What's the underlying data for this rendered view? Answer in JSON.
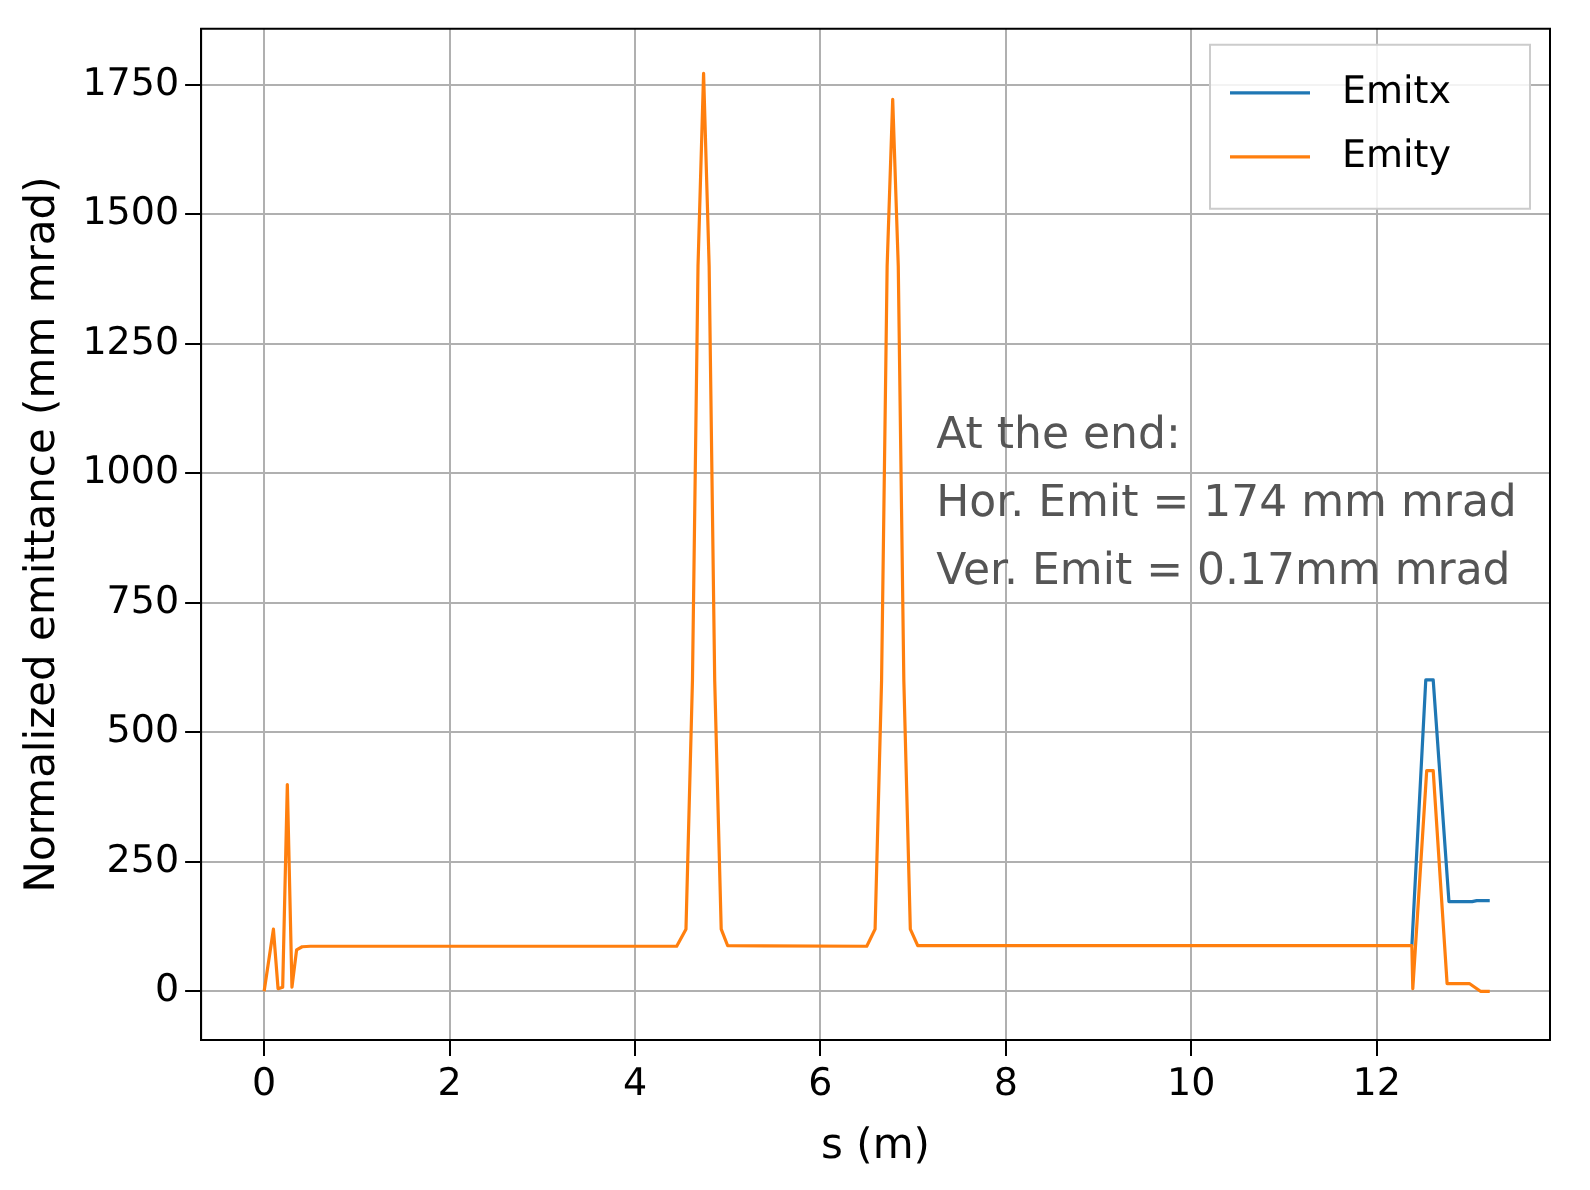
{
  "chart_data": {
    "type": "line",
    "xlabel": "s (m)",
    "ylabel": "Normalized emittance (mm mrad)",
    "annotations": [
      "At the end:",
      "Hor. Emit = 174 mm mrad",
      "Ver. Emit = 0.17mm mrad"
    ],
    "series": [
      {
        "name": "Emitx",
        "color": "#1f77b4",
        "x": [
          12.38,
          12.53,
          12.61,
          12.78,
          13.03,
          13.08,
          13.22
        ],
        "values": [
          88,
          601,
          601,
          173,
          173,
          175,
          175
        ]
      },
      {
        "name": "Emity",
        "color": "#ff7f0e",
        "x": [
          0,
          0.1,
          0.15,
          0.2,
          0.25,
          0.3,
          0.35,
          0.41,
          0.5,
          4.45,
          4.55,
          4.62,
          4.68,
          4.74,
          4.8,
          4.86,
          4.93,
          5.0,
          6.5,
          6.59,
          6.66,
          6.72,
          6.78,
          6.84,
          6.9,
          6.97,
          7.05,
          12.38,
          12.39,
          12.54,
          12.61,
          12.76,
          13.0,
          13.12,
          13.22
        ],
        "values": [
          0,
          120,
          5,
          8,
          399,
          8,
          80,
          86,
          87,
          87,
          120,
          600,
          1400,
          1772,
          1400,
          600,
          120,
          88,
          87,
          120,
          600,
          1400,
          1722,
          1400,
          600,
          120,
          88,
          88,
          5,
          426,
          426,
          15,
          15,
          0,
          0
        ]
      }
    ],
    "xlim": [
      -0.68,
      13.87
    ],
    "xticks": [
      0,
      2,
      4,
      6,
      8,
      10,
      12
    ],
    "ylim": [
      -94,
      1858
    ],
    "yticks": [
      0,
      250,
      500,
      750,
      1000,
      1250,
      1500,
      1750
    ],
    "grid": true,
    "legend": "top right",
    "marker": "none",
    "line_style": "solid"
  }
}
